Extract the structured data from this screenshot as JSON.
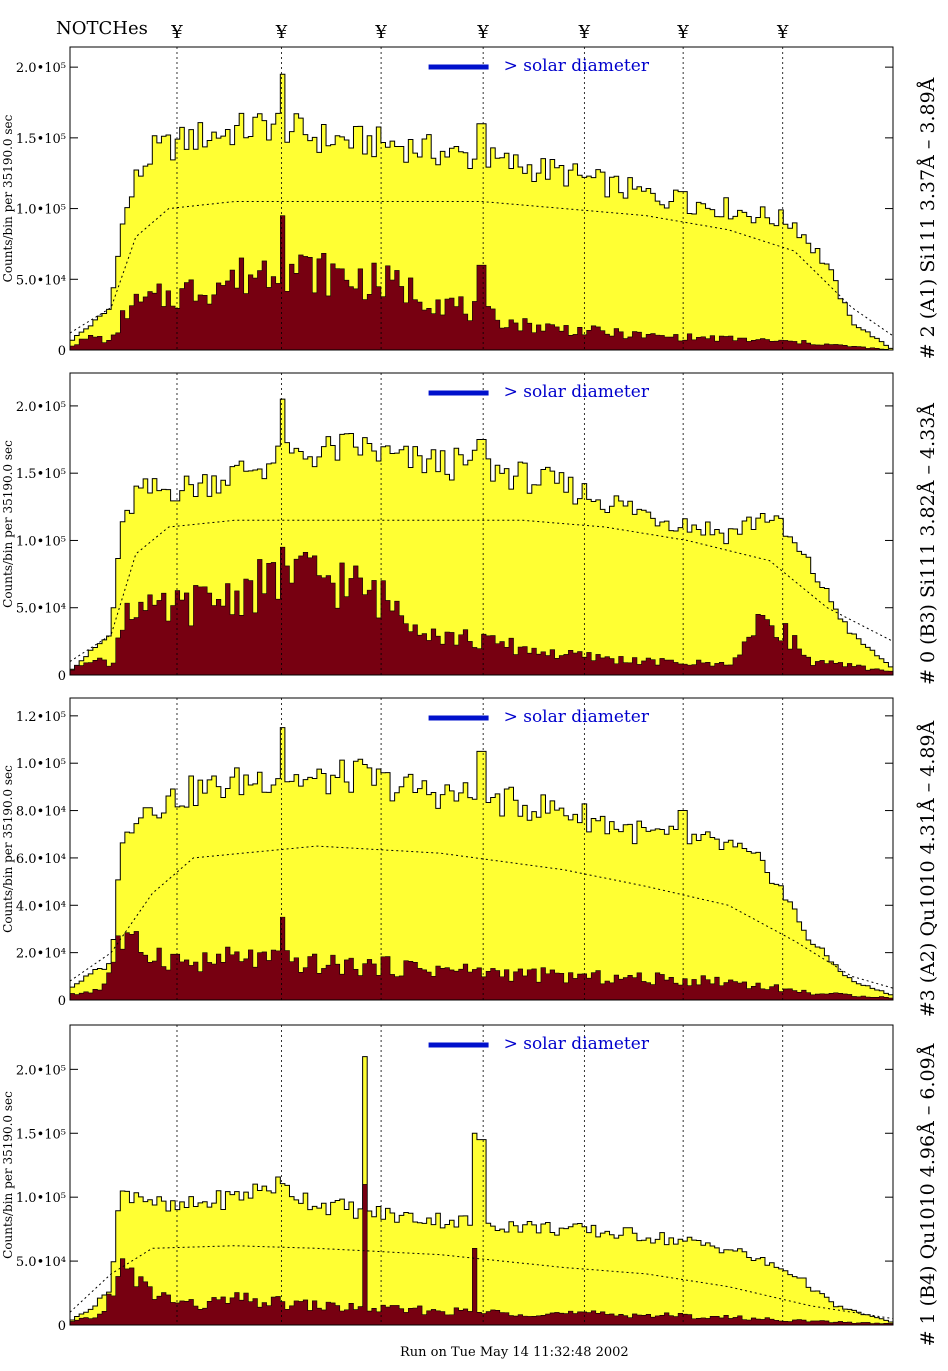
{
  "header": {
    "notches_label": "NOTCHes",
    "notch_symbol": "¥"
  },
  "footer": {
    "run_text": "Run on Tue May 14 11:32:48 2002"
  },
  "colors": {
    "fill_yellow": "#ffff33",
    "fill_dark": "#770011",
    "legend_blue": "#0011cc",
    "text_blue": "#0000cc"
  },
  "chart_data": [
    {
      "type": "area",
      "right_label": "# 2 (A1) Si111  3.37Å – 3.89Å",
      "ylabel": "Counts/bin per  35190.0 sec",
      "yticks": [
        "0",
        "5.0•10⁴",
        "1.0•10⁵",
        "1.5•10⁵",
        "2.0•10⁵"
      ],
      "ytick_values": [
        0,
        50000,
        100000,
        150000,
        200000
      ],
      "ylim": [
        0,
        210000
      ],
      "legend": "> solar diameter",
      "notch_x": [
        0.13,
        0.257,
        0.378,
        0.502,
        0.625,
        0.745,
        0.866
      ],
      "yellow_profile": [
        [
          0,
          6000
        ],
        [
          0.03,
          20000
        ],
        [
          0.05,
          30000
        ],
        [
          0.06,
          80000
        ],
        [
          0.08,
          120000
        ],
        [
          0.1,
          140000
        ],
        [
          0.15,
          150000
        ],
        [
          0.25,
          160000
        ],
        [
          0.3,
          150000
        ],
        [
          0.4,
          145000
        ],
        [
          0.5,
          135000
        ],
        [
          0.6,
          125000
        ],
        [
          0.7,
          110000
        ],
        [
          0.8,
          100000
        ],
        [
          0.88,
          90000
        ],
        [
          0.92,
          60000
        ],
        [
          0.95,
          20000
        ],
        [
          1,
          0
        ]
      ],
      "dark_profile": [
        [
          0,
          3000
        ],
        [
          0.03,
          10000
        ],
        [
          0.05,
          5000
        ],
        [
          0.07,
          30000
        ],
        [
          0.1,
          35000
        ],
        [
          0.2,
          50000
        ],
        [
          0.25,
          60000
        ],
        [
          0.3,
          55000
        ],
        [
          0.35,
          50000
        ],
        [
          0.4,
          45000
        ],
        [
          0.45,
          35000
        ],
        [
          0.5,
          25000
        ],
        [
          0.55,
          18000
        ],
        [
          0.6,
          15000
        ],
        [
          0.7,
          10000
        ],
        [
          0.8,
          8000
        ],
        [
          0.9,
          5000
        ],
        [
          1,
          0
        ]
      ],
      "dotted_profile": [
        [
          0,
          12000
        ],
        [
          0.05,
          30000
        ],
        [
          0.08,
          80000
        ],
        [
          0.12,
          100000
        ],
        [
          0.2,
          105000
        ],
        [
          0.5,
          105000
        ],
        [
          0.6,
          100000
        ],
        [
          0.7,
          95000
        ],
        [
          0.8,
          85000
        ],
        [
          0.88,
          70000
        ],
        [
          0.95,
          30000
        ],
        [
          1,
          10000
        ]
      ],
      "spikes": [
        [
          0.257,
          195000
        ],
        [
          0.5,
          160000
        ],
        [
          0.745,
          112000
        ]
      ],
      "dark_spikes": [
        [
          0.257,
          95000
        ],
        [
          0.5,
          60000
        ]
      ]
    },
    {
      "type": "area",
      "right_label": "# 0 (B3) Si111  3.82Å – 4.33Å",
      "ylabel": "Counts/bin per  35190.0 sec",
      "yticks": [
        "0",
        "5.0•10⁴",
        "1.0•10⁵",
        "1.5•10⁵",
        "2.0•10⁵"
      ],
      "ytick_values": [
        0,
        50000,
        100000,
        150000,
        200000
      ],
      "ylim": [
        0,
        220000
      ],
      "legend": "> solar diameter",
      "notch_x": [
        0.13,
        0.257,
        0.378,
        0.502,
        0.625,
        0.745,
        0.866
      ],
      "yellow_profile": [
        [
          0,
          3000
        ],
        [
          0.03,
          20000
        ],
        [
          0.05,
          30000
        ],
        [
          0.06,
          100000
        ],
        [
          0.08,
          135000
        ],
        [
          0.15,
          140000
        ],
        [
          0.2,
          150000
        ],
        [
          0.26,
          160000
        ],
        [
          0.3,
          165000
        ],
        [
          0.35,
          170000
        ],
        [
          0.4,
          160000
        ],
        [
          0.5,
          155000
        ],
        [
          0.6,
          140000
        ],
        [
          0.7,
          120000
        ],
        [
          0.8,
          105000
        ],
        [
          0.85,
          120000
        ],
        [
          0.9,
          80000
        ],
        [
          0.95,
          30000
        ],
        [
          1,
          5000
        ]
      ],
      "dark_profile": [
        [
          0,
          3000
        ],
        [
          0.03,
          15000
        ],
        [
          0.05,
          5000
        ],
        [
          0.07,
          55000
        ],
        [
          0.1,
          45000
        ],
        [
          0.2,
          60000
        ],
        [
          0.25,
          70000
        ],
        [
          0.3,
          75000
        ],
        [
          0.35,
          65000
        ],
        [
          0.4,
          50000
        ],
        [
          0.45,
          30000
        ],
        [
          0.5,
          25000
        ],
        [
          0.6,
          15000
        ],
        [
          0.7,
          10000
        ],
        [
          0.8,
          8000
        ],
        [
          0.85,
          45000
        ],
        [
          0.9,
          10000
        ],
        [
          1,
          3000
        ]
      ],
      "dotted_profile": [
        [
          0,
          10000
        ],
        [
          0.05,
          30000
        ],
        [
          0.08,
          90000
        ],
        [
          0.12,
          110000
        ],
        [
          0.2,
          115000
        ],
        [
          0.55,
          115000
        ],
        [
          0.65,
          110000
        ],
        [
          0.75,
          100000
        ],
        [
          0.85,
          85000
        ],
        [
          0.92,
          50000
        ],
        [
          1,
          25000
        ]
      ],
      "spikes": [
        [
          0.257,
          205000
        ],
        [
          0.5,
          175000
        ]
      ],
      "dark_spikes": [
        [
          0.257,
          95000
        ]
      ]
    },
    {
      "type": "area",
      "right_label": "#3 (A2) Qu1010  4.31Å – 4.89Å",
      "ylabel": "Counts/bin per  35190.0 sec",
      "yticks": [
        "0",
        "2.0•10⁴",
        "4.0•10⁴",
        "6.0•10⁴",
        "8.0•10⁴",
        "1.0•10⁵",
        "1.2•10⁵"
      ],
      "ytick_values": [
        0,
        20000,
        40000,
        60000,
        80000,
        100000,
        120000
      ],
      "ylim": [
        0,
        125000
      ],
      "legend": "> solar diameter",
      "notch_x": [
        0.13,
        0.257,
        0.378,
        0.502,
        0.625,
        0.745,
        0.866
      ],
      "yellow_profile": [
        [
          0,
          5000
        ],
        [
          0.03,
          12000
        ],
        [
          0.05,
          15000
        ],
        [
          0.06,
          60000
        ],
        [
          0.08,
          80000
        ],
        [
          0.15,
          88000
        ],
        [
          0.25,
          95000
        ],
        [
          0.3,
          92000
        ],
        [
          0.35,
          95000
        ],
        [
          0.4,
          90000
        ],
        [
          0.5,
          85000
        ],
        [
          0.6,
          80000
        ],
        [
          0.7,
          70000
        ],
        [
          0.8,
          65000
        ],
        [
          0.85,
          55000
        ],
        [
          0.9,
          25000
        ],
        [
          0.95,
          8000
        ],
        [
          1,
          2000
        ]
      ],
      "dark_profile": [
        [
          0,
          2000
        ],
        [
          0.04,
          5000
        ],
        [
          0.06,
          25000
        ],
        [
          0.1,
          20000
        ],
        [
          0.15,
          15000
        ],
        [
          0.2,
          18000
        ],
        [
          0.25,
          17000
        ],
        [
          0.3,
          15000
        ],
        [
          0.4,
          14000
        ],
        [
          0.5,
          12000
        ],
        [
          0.6,
          10000
        ],
        [
          0.7,
          9000
        ],
        [
          0.8,
          8000
        ],
        [
          0.9,
          3000
        ],
        [
          1,
          1000
        ]
      ],
      "dotted_profile": [
        [
          0,
          8000
        ],
        [
          0.05,
          20000
        ],
        [
          0.1,
          45000
        ],
        [
          0.15,
          60000
        ],
        [
          0.3,
          65000
        ],
        [
          0.45,
          62000
        ],
        [
          0.6,
          55000
        ],
        [
          0.7,
          48000
        ],
        [
          0.8,
          40000
        ],
        [
          0.88,
          25000
        ],
        [
          0.95,
          10000
        ],
        [
          1,
          5000
        ]
      ],
      "spikes": [
        [
          0.257,
          115000
        ],
        [
          0.5,
          105000
        ],
        [
          0.745,
          80000
        ]
      ],
      "dark_spikes": [
        [
          0.257,
          35000
        ]
      ]
    },
    {
      "type": "area",
      "right_label": "# 1 (B4) Qu1010 4.96Å – 6.09Å",
      "ylabel": "Counts/bin per  35190.0 sec",
      "yticks": [
        "0",
        "5.0•10⁴",
        "1.0•10⁵",
        "1.5•10⁵",
        "2.0•10⁵"
      ],
      "ytick_values": [
        0,
        50000,
        100000,
        150000,
        200000
      ],
      "ylim": [
        0,
        230000
      ],
      "legend": "> solar diameter",
      "notch_x": [
        0.13,
        0.257,
        0.378,
        0.502,
        0.625,
        0.745,
        0.866
      ],
      "yellow_profile": [
        [
          0,
          3000
        ],
        [
          0.03,
          15000
        ],
        [
          0.05,
          30000
        ],
        [
          0.06,
          100000
        ],
        [
          0.08,
          105000
        ],
        [
          0.12,
          90000
        ],
        [
          0.2,
          100000
        ],
        [
          0.25,
          110000
        ],
        [
          0.3,
          95000
        ],
        [
          0.35,
          90000
        ],
        [
          0.4,
          85000
        ],
        [
          0.5,
          80000
        ],
        [
          0.6,
          75000
        ],
        [
          0.7,
          70000
        ],
        [
          0.8,
          60000
        ],
        [
          0.88,
          40000
        ],
        [
          0.93,
          15000
        ],
        [
          1,
          2000
        ]
      ],
      "dark_profile": [
        [
          0,
          2000
        ],
        [
          0.04,
          8000
        ],
        [
          0.06,
          45000
        ],
        [
          0.1,
          25000
        ],
        [
          0.15,
          15000
        ],
        [
          0.2,
          20000
        ],
        [
          0.3,
          15000
        ],
        [
          0.4,
          12000
        ],
        [
          0.5,
          10000
        ],
        [
          0.6,
          9000
        ],
        [
          0.7,
          8000
        ],
        [
          0.8,
          6000
        ],
        [
          0.9,
          3000
        ],
        [
          1,
          1000
        ]
      ],
      "dotted_profile": [
        [
          0,
          10000
        ],
        [
          0.05,
          40000
        ],
        [
          0.1,
          60000
        ],
        [
          0.2,
          62000
        ],
        [
          0.3,
          60000
        ],
        [
          0.45,
          55000
        ],
        [
          0.6,
          45000
        ],
        [
          0.7,
          40000
        ],
        [
          0.8,
          30000
        ],
        [
          0.9,
          15000
        ],
        [
          1,
          5000
        ]
      ],
      "spikes": [
        [
          0.36,
          210000
        ],
        [
          0.49,
          150000
        ],
        [
          0.5,
          145000
        ]
      ],
      "dark_spikes": [
        [
          0.36,
          110000
        ],
        [
          0.49,
          60000
        ]
      ]
    }
  ]
}
